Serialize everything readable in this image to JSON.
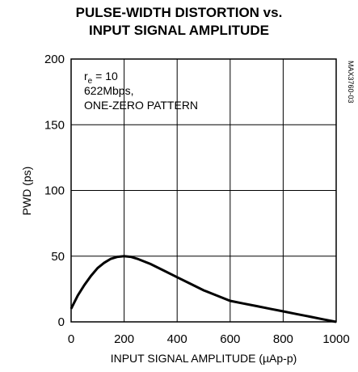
{
  "chart_data": {
    "type": "line",
    "title_line1": "PULSE-WIDTH DISTORTION vs.",
    "title_line2": "INPUT SIGNAL AMPLITUDE",
    "xlabel": "INPUT SIGNAL AMPLITUDE (µAp-p)",
    "ylabel": "PWD (ps)",
    "xlim": [
      0,
      1000
    ],
    "ylim": [
      0,
      200
    ],
    "xticks": [
      0,
      200,
      400,
      600,
      800,
      1000
    ],
    "yticks": [
      0,
      50,
      100,
      150,
      200
    ],
    "grid": true,
    "annotation": {
      "line1_main": "r",
      "line1_sub": "e",
      "line1_rest": " = 10",
      "line2": "622Mbps,",
      "line3": "ONE-ZERO PATTERN"
    },
    "side_label": "MAX3760-03",
    "series": [
      {
        "x": [
          0,
          25,
          50,
          75,
          100,
          125,
          150,
          175,
          200,
          225,
          250,
          300,
          350,
          400,
          450,
          500,
          550,
          600,
          650,
          700,
          750,
          800,
          850,
          900,
          950,
          1000
        ],
        "y": [
          10,
          20,
          28,
          35,
          41,
          45,
          48,
          49.5,
          50,
          49.5,
          48,
          44,
          39,
          34,
          29,
          24,
          20,
          16,
          14,
          12,
          10,
          8,
          6,
          4,
          2,
          0
        ]
      }
    ]
  }
}
